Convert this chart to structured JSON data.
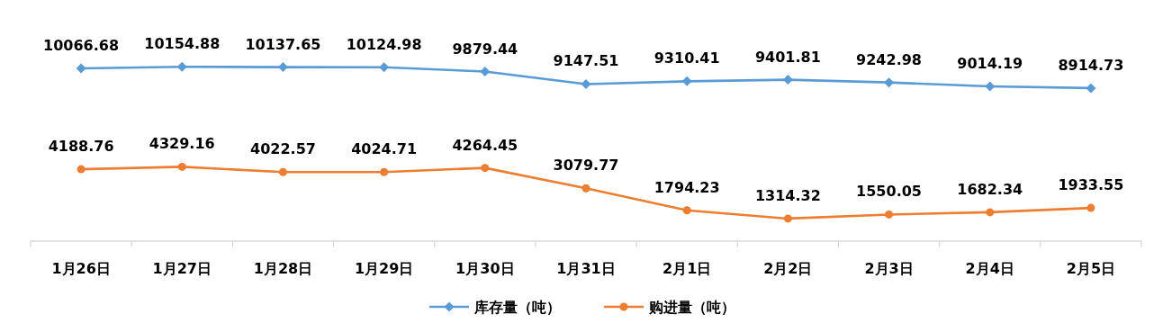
{
  "chart_data": {
    "type": "line",
    "categories": [
      "1月26日",
      "1月27日",
      "1月28日",
      "1月29日",
      "1月30日",
      "1月31日",
      "2月1日",
      "2月2日",
      "2月3日",
      "2月4日",
      "2月5日"
    ],
    "series": [
      {
        "name": "库存量（吨）",
        "color": "#5b9bd5",
        "marker": "diamond",
        "values": [
          10066.68,
          10154.88,
          10137.65,
          10124.98,
          9879.44,
          9147.51,
          9310.41,
          9401.81,
          9242.98,
          9014.19,
          8914.73
        ]
      },
      {
        "name": "购进量（吨）",
        "color": "#ed7d31",
        "marker": "circle",
        "values": [
          4188.76,
          4329.16,
          4022.57,
          4024.71,
          4264.45,
          3079.77,
          1794.23,
          1314.32,
          1550.05,
          1682.34,
          1933.55
        ]
      }
    ],
    "data_labels": true,
    "legend": "bottom",
    "line_style": "solid"
  }
}
